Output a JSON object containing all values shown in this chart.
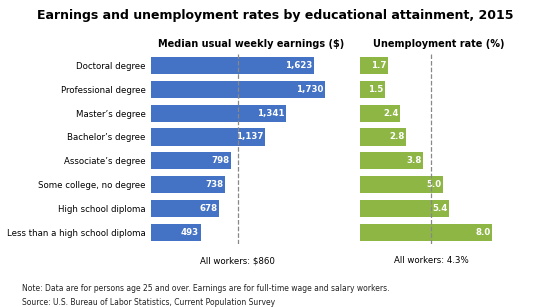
{
  "title": "Earnings and unemployment rates by educational attainment, 2015",
  "categories": [
    "Doctoral degree",
    "Professional degree",
    "Master’s degree",
    "Bachelor’s degree",
    "Associate’s degree",
    "Some college, no degree",
    "High school diploma",
    "Less than a high school diploma"
  ],
  "earnings": [
    1623,
    1730,
    1341,
    1137,
    798,
    738,
    678,
    493
  ],
  "unemployment": [
    1.7,
    1.5,
    2.4,
    2.8,
    3.8,
    5.0,
    5.4,
    8.0
  ],
  "earnings_color": "#4472C4",
  "unemployment_color": "#8DB645",
  "earnings_label": "Median usual weekly earnings ($)",
  "unemployment_label": "Unemployment rate (%)",
  "earnings_all_workers": "All workers: $860",
  "unemployment_all_workers": "All workers: 4.3%",
  "note_line1": "Note: Data are for persons age 25 and over. Earnings are for full-time wage and salary workers.",
  "note_line2": "Source: U.S. Bureau of Labor Statistics, Current Population Survey",
  "earnings_ref": 860,
  "unemployment_ref": 4.3,
  "earnings_max": 2000,
  "unemployment_max": 9.5,
  "bg_color": "#FFFFFF"
}
